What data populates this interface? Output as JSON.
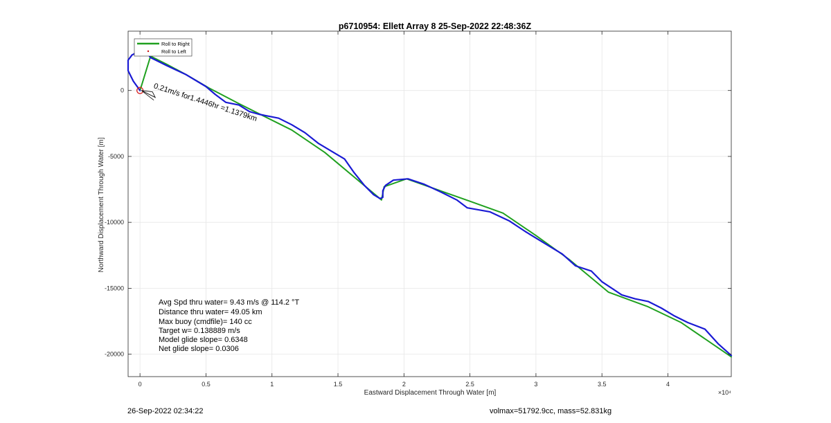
{
  "chart_data": {
    "type": "line",
    "title": "p6710954: Ellett Array 8 25-Sep-2022 22:48:36Z",
    "xlabel": "Eastward Displacement Through Water [m]",
    "ylabel": "Northward Displacement Through Water [m]",
    "x_exponent_label": "×10⁴",
    "xlim": [
      -900,
      44800
    ],
    "ylim": [
      -21700,
      4500
    ],
    "x_ticks": [
      0,
      5000,
      10000,
      15000,
      20000,
      25000,
      30000,
      35000,
      40000
    ],
    "x_tick_labels": [
      "0",
      "0.5",
      "1",
      "1.5",
      "2",
      "2.5",
      "3",
      "3.5",
      "4"
    ],
    "y_ticks": [
      0,
      -5000,
      -10000,
      -15000,
      -20000
    ],
    "y_tick_labels": [
      "0",
      "-5000",
      "-10000",
      "-15000",
      "-20000"
    ],
    "grid": true,
    "legend_position": "top-left",
    "series": [
      {
        "name": "Roll to Right",
        "color": "#1fa01f",
        "x": [
          0,
          800,
          2000,
          3500,
          5200,
          7500,
          11500,
          14000,
          18300,
          18500,
          20200,
          25000,
          27500,
          30000,
          32500,
          35500,
          38500,
          41000,
          44800
        ],
        "y": [
          0,
          2600,
          2000,
          1200,
          200,
          -1000,
          -3000,
          -4700,
          -8300,
          -7300,
          -6700,
          -8400,
          -9300,
          -11000,
          -12800,
          -15300,
          -16400,
          -17600,
          -20200
        ]
      },
      {
        "name": "Roll to Left",
        "color": "#1a1ad4",
        "x": [
          0,
          -500,
          -900,
          -900,
          -600,
          0,
          500,
          800,
          1200,
          2000,
          3500,
          5000,
          5700,
          6500,
          7500,
          8300,
          9000,
          10500,
          11500,
          12500,
          13500,
          14500,
          15500,
          16200,
          17000,
          17700,
          18200,
          18400,
          18400,
          18600,
          19200,
          20300,
          21500,
          22800,
          24000,
          24800,
          26500,
          28000,
          29200,
          30500,
          32000,
          33000,
          34200,
          35000,
          36500,
          37500,
          38500,
          39500,
          40500,
          41500,
          42800,
          43800,
          44800
        ],
        "y": [
          0,
          700,
          1500,
          2300,
          2700,
          3000,
          2900,
          2500,
          2300,
          1900,
          1200,
          300,
          -300,
          -900,
          -1100,
          -1600,
          -1800,
          -2100,
          -2600,
          -3200,
          -4000,
          -4600,
          -5200,
          -6200,
          -7200,
          -7900,
          -8200,
          -8100,
          -7600,
          -7200,
          -6800,
          -6700,
          -7100,
          -7700,
          -8300,
          -8900,
          -9200,
          -9900,
          -10700,
          -11500,
          -12400,
          -13300,
          -13700,
          -14500,
          -15500,
          -15800,
          -16000,
          -16500,
          -17100,
          -17600,
          -18100,
          -19200,
          -20100
        ]
      }
    ],
    "annotations": [
      {
        "text": "0.21m/s for1.4446hr =1.1379km",
        "x": 1000,
        "y": 200,
        "rotation_deg": 18
      }
    ],
    "stats": [
      "Avg Spd thru water=  9.43 m/s @ 114.2 °T",
      "Distance thru water= 49.05 km",
      "Max buoy (cmdfile)= 140 cc",
      "Target w= 0.138889 m/s",
      "Model glide slope= 0.6348",
      "Net glide slope= 0.0306"
    ]
  },
  "footer": {
    "timestamp": "26-Sep-2022 02:34:22",
    "volmass": "volmax=51792.9cc, mass=52.831kg"
  }
}
